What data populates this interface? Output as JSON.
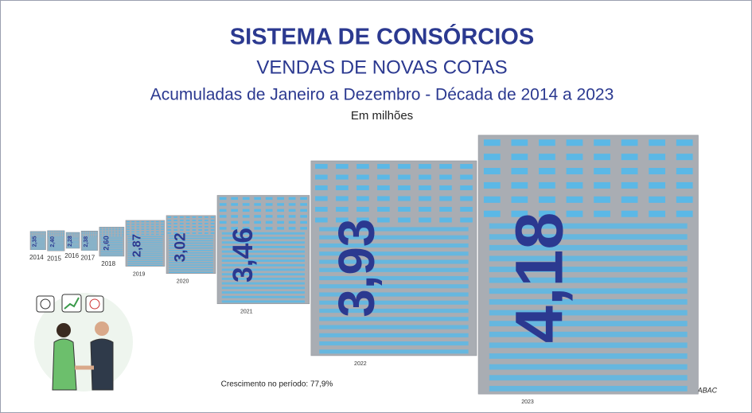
{
  "chart_data": {
    "type": "building",
    "title": "SISTEMA DE CONSÓRCIOS",
    "subtitle": "VENDAS DE NOVAS COTAS",
    "description": "Acumuladas de Janeiro a Dezembro - Década de 2014 a 2023",
    "unit": "Em milhões",
    "categories": [
      "2014",
      "2015",
      "2016",
      "2017",
      "2018",
      "2019",
      "2020",
      "2021",
      "2022",
      "2023"
    ],
    "values": [
      2.35,
      2.4,
      2.28,
      2.38,
      2.6,
      2.87,
      3.02,
      3.46,
      3.93,
      4.18
    ],
    "value_labels": [
      "2,35",
      "2,40",
      "2,28",
      "2,38",
      "2,60",
      "2,87",
      "3,02",
      "3,46",
      "3,93",
      "4,18"
    ],
    "color": "#5bb8e6",
    "annotation": "Crescimento no período: 77,9%",
    "source": "Fonte: ABAC"
  }
}
